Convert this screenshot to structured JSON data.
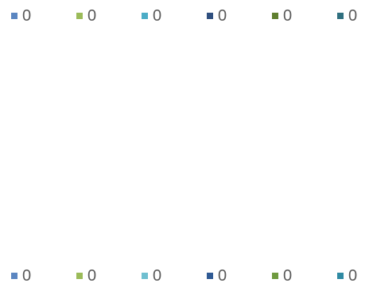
{
  "chart_data": {
    "type": "bar",
    "categories": [],
    "series": [
      {
        "label": "0",
        "color": "#5b86c1",
        "values": []
      },
      {
        "label": "0",
        "color": "#9bbb59",
        "values": []
      },
      {
        "label": "0",
        "color": "#4bacc6",
        "values": []
      },
      {
        "label": "0",
        "color": "#2f4f7f",
        "values": []
      },
      {
        "label": "0",
        "color": "#5f7f2f",
        "values": []
      },
      {
        "label": "0",
        "color": "#2f6f7f",
        "values": []
      }
    ],
    "title": "",
    "xlabel": "",
    "ylabel": "",
    "grid": false,
    "legend_placement": [
      "top",
      "bottom"
    ]
  },
  "legend_top": {
    "items": [
      {
        "label": "0",
        "color": "#5b86c1",
        "icon": "square-swatch-icon"
      },
      {
        "label": "0",
        "color": "#9bbb59",
        "icon": "square-swatch-icon"
      },
      {
        "label": "0",
        "color": "#4bacc6",
        "icon": "square-swatch-icon"
      },
      {
        "label": "0",
        "color": "#2f4f7f",
        "icon": "square-swatch-icon"
      },
      {
        "label": "0",
        "color": "#5f7f2f",
        "icon": "square-swatch-icon"
      },
      {
        "label": "0",
        "color": "#2f6f7f",
        "icon": "square-swatch-icon"
      }
    ]
  },
  "legend_bottom": {
    "items": [
      {
        "label": "0",
        "color": "#5b86c1",
        "icon": "square-swatch-icon"
      },
      {
        "label": "0",
        "color": "#9bbb59",
        "icon": "square-swatch-icon"
      },
      {
        "label": "0",
        "color": "#6fbfd0",
        "icon": "square-swatch-icon"
      },
      {
        "label": "0",
        "color": "#2f5a94",
        "icon": "square-swatch-icon"
      },
      {
        "label": "0",
        "color": "#6f9a3f",
        "icon": "square-swatch-icon"
      },
      {
        "label": "0",
        "color": "#2f8aa3",
        "icon": "square-swatch-icon"
      }
    ]
  }
}
